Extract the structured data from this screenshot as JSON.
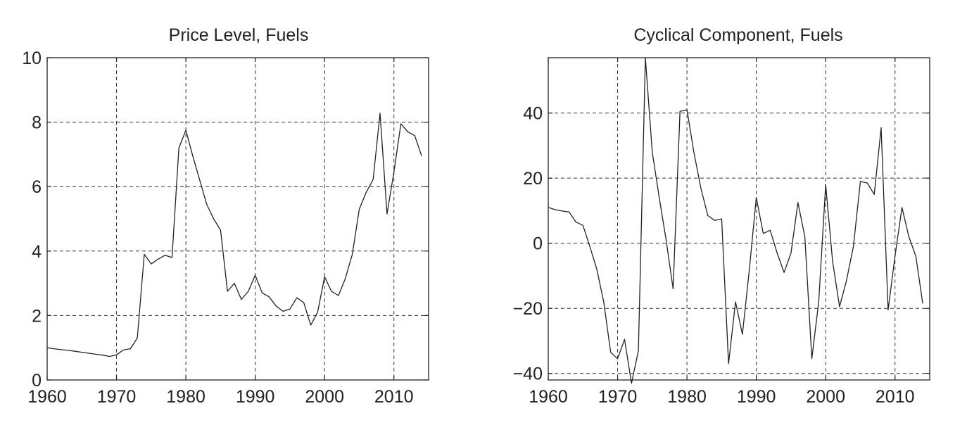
{
  "chart_data": [
    {
      "type": "line",
      "title": "Price Level, Fuels",
      "xlabel": "",
      "ylabel": "",
      "xlim": [
        1960,
        2015
      ],
      "ylim": [
        0,
        10
      ],
      "xticks": [
        1960,
        1970,
        1980,
        1990,
        2000,
        2010
      ],
      "xtick_labels": [
        "1960",
        "1970",
        "1980",
        "1990",
        "2000",
        "2010"
      ],
      "yticks": [
        0,
        2,
        4,
        6,
        8,
        10
      ],
      "ytick_labels": [
        "0",
        "2",
        "4",
        "6",
        "8",
        "10"
      ],
      "grid": true,
      "series": [
        {
          "x": [
            1960,
            1961,
            1962,
            1963,
            1964,
            1965,
            1966,
            1967,
            1968,
            1969,
            1970,
            1971,
            1972,
            1973,
            1974,
            1975,
            1976,
            1977,
            1978,
            1979,
            1980,
            1981,
            1982,
            1983,
            1984,
            1985,
            1986,
            1987,
            1988,
            1989,
            1990,
            1991,
            1992,
            1993,
            1994,
            1995,
            1996,
            1997,
            1998,
            1999,
            2000,
            2001,
            2002,
            2003,
            2004,
            2005,
            2006,
            2007,
            2008,
            2009,
            2010,
            2011,
            2012,
            2013,
            2014
          ],
          "y": [
            1.0,
            0.97,
            0.94,
            0.92,
            0.89,
            0.86,
            0.83,
            0.8,
            0.77,
            0.73,
            0.78,
            0.93,
            0.97,
            1.3,
            3.9,
            3.6,
            3.75,
            3.87,
            3.8,
            7.2,
            7.75,
            6.95,
            6.2,
            5.45,
            5.0,
            4.65,
            2.75,
            3.0,
            2.5,
            2.75,
            3.25,
            2.7,
            2.58,
            2.3,
            2.13,
            2.2,
            2.55,
            2.4,
            1.7,
            2.1,
            3.2,
            2.75,
            2.62,
            3.15,
            3.9,
            5.3,
            5.82,
            6.22,
            8.28,
            5.15,
            6.45,
            7.95,
            7.7,
            7.58,
            6.95
          ]
        }
      ]
    },
    {
      "type": "line",
      "title": "Cyclical Component, Fuels",
      "xlabel": "",
      "ylabel": "",
      "xlim": [
        1960,
        2015
      ],
      "ylim": [
        -42,
        57
      ],
      "xticks": [
        1960,
        1970,
        1980,
        1990,
        2000,
        2010
      ],
      "xtick_labels": [
        "1960",
        "1970",
        "1980",
        "1990",
        "2000",
        "2010"
      ],
      "yticks": [
        -40,
        -20,
        0,
        20,
        40
      ],
      "ytick_labels": [
        "−40",
        "−20",
        "0",
        "20",
        "40"
      ],
      "grid": true,
      "series": [
        {
          "x": [
            1960,
            1961,
            1962,
            1963,
            1964,
            1965,
            1966,
            1967,
            1968,
            1969,
            1970,
            1971,
            1972,
            1973,
            1974,
            1975,
            1976,
            1977,
            1978,
            1979,
            1980,
            1981,
            1982,
            1983,
            1984,
            1985,
            1986,
            1987,
            1988,
            1989,
            1990,
            1991,
            1992,
            1993,
            1994,
            1995,
            1996,
            1997,
            1998,
            1999,
            2000,
            2001,
            2002,
            2003,
            2004,
            2005,
            2006,
            2007,
            2008,
            2009,
            2010,
            2011,
            2012,
            2013,
            2014
          ],
          "y": [
            11,
            10.3,
            9.9,
            9.6,
            6.5,
            5.5,
            -1,
            -8,
            -18,
            -33.5,
            -35.5,
            -29.5,
            -43,
            -33,
            57,
            28,
            14,
            1,
            -14,
            40.5,
            41,
            28,
            17,
            8.5,
            7,
            7.5,
            -37,
            -18,
            -28,
            -8,
            14,
            3,
            4,
            -3,
            -9,
            -3,
            12.5,
            2,
            -35.5,
            -18,
            18,
            -5.5,
            -19.5,
            -11.5,
            -1,
            19,
            18.5,
            15,
            35.5,
            -20.5,
            -4,
            11,
            2,
            -4,
            -18.5
          ]
        }
      ]
    }
  ]
}
